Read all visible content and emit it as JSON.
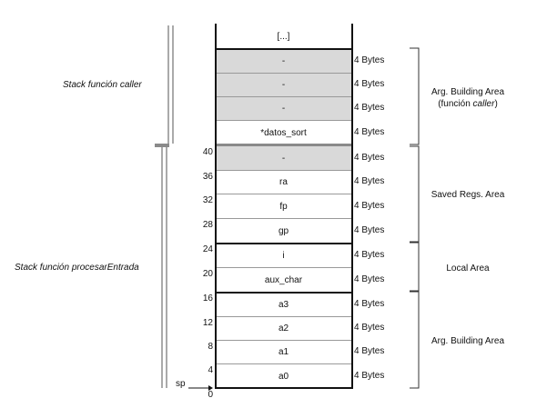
{
  "stack": {
    "top_cell": "[...]",
    "cells": [
      {
        "label": "-",
        "bytes": "4 Bytes",
        "offset": "",
        "shade": true
      },
      {
        "label": "-",
        "bytes": "4 Bytes",
        "offset": "",
        "shade": true
      },
      {
        "label": "-",
        "bytes": "4 Bytes",
        "offset": "",
        "shade": true
      },
      {
        "label": "*datos_sort",
        "bytes": "4 Bytes",
        "offset": "",
        "shade": false
      },
      {
        "label": "-",
        "bytes": "4 Bytes",
        "offset": "40",
        "shade": true
      },
      {
        "label": "ra",
        "bytes": "4 Bytes",
        "offset": "36",
        "shade": false
      },
      {
        "label": "fp",
        "bytes": "4 Bytes",
        "offset": "32",
        "shade": false
      },
      {
        "label": "gp",
        "bytes": "4 Bytes",
        "offset": "28",
        "shade": false
      },
      {
        "label": "i",
        "bytes": "4 Bytes",
        "offset": "24",
        "shade": false
      },
      {
        "label": "aux_char",
        "bytes": "4 Bytes",
        "offset": "20",
        "shade": false
      },
      {
        "label": "a3",
        "bytes": "4 Bytes",
        "offset": "16",
        "shade": false
      },
      {
        "label": "a2",
        "bytes": "4 Bytes",
        "offset": "12",
        "shade": false
      },
      {
        "label": "a1",
        "bytes": "4 Bytes",
        "offset": "8",
        "shade": false
      },
      {
        "label": "a0",
        "bytes": "4 Bytes",
        "offset": "4",
        "shade": false
      }
    ],
    "bottom_offset": "0",
    "sp_label": "sp"
  },
  "areas": {
    "caller_arg_line1": "Arg. Building Area",
    "caller_arg_line2": "(función ",
    "caller_arg_line2_italic": "caller",
    "caller_arg_line2_end": ")",
    "saved_regs": "Saved Regs. Area",
    "local": "Local Area",
    "arg_building": "Arg. Building Area"
  },
  "frames": {
    "caller": "Stack función caller",
    "procesar": "Stack función procesarEntrada"
  }
}
